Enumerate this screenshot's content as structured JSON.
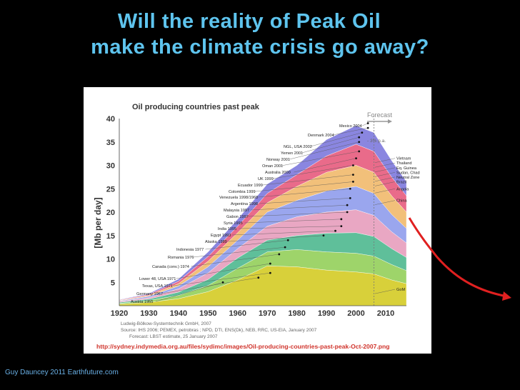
{
  "slide": {
    "title_line1": "Will the reality of Peak Oil",
    "title_line2": "make the climate crisis go away?",
    "credit": "Guy Dauncey 2011 Earthfuture.com"
  },
  "chart_data": {
    "type": "area",
    "title": "Oil producing countries past peak",
    "ylabel": "[Mb per day]",
    "xlabel": "",
    "xlim": [
      1920,
      2017
    ],
    "ylim": [
      0,
      40
    ],
    "x_ticks": [
      1920,
      1930,
      1940,
      1950,
      1960,
      1970,
      1980,
      1990,
      2000,
      2010
    ],
    "y_ticks": [
      5,
      10,
      15,
      20,
      25,
      30,
      35,
      40
    ],
    "grid": false,
    "forecast_label": "Forecast",
    "forecast_start": 2006,
    "forecast_rate_label": "- 3% p.a.",
    "series": [
      {
        "x": [
          1920,
          1930,
          1940,
          1950,
          1960,
          1970,
          1980,
          1990,
          2000,
          2006,
          2012,
          2017
        ],
        "values": [
          0.3,
          0.7,
          1.5,
          3.0,
          5.5,
          8.5,
          8.3,
          7.6,
          7.2,
          6.8,
          5.5,
          4.7
        ]
      },
      {
        "x": [
          1920,
          1930,
          1940,
          1950,
          1960,
          1970,
          1980,
          1990,
          2000,
          2006,
          2012,
          2017
        ],
        "values": [
          0.5,
          1.1,
          2.2,
          4.3,
          8.0,
          11.5,
          12.0,
          11.5,
          11.2,
          10.6,
          8.8,
          7.5
        ]
      },
      {
        "x": [
          1920,
          1930,
          1940,
          1950,
          1960,
          1970,
          1980,
          1990,
          2000,
          2006,
          2012,
          2017
        ],
        "values": [
          0.7,
          1.4,
          2.9,
          5.6,
          10.2,
          14.0,
          15.0,
          15.5,
          15.6,
          14.8,
          12.2,
          10.3
        ]
      },
      {
        "x": [
          1920,
          1930,
          1940,
          1950,
          1960,
          1970,
          1980,
          1990,
          2000,
          2006,
          2012,
          2017
        ],
        "values": [
          0.9,
          1.7,
          3.6,
          7.0,
          12.2,
          17.0,
          19.0,
          20.0,
          20.5,
          19.3,
          15.8,
          13.4
        ]
      },
      {
        "x": [
          1920,
          1930,
          1940,
          1950,
          1960,
          1970,
          1980,
          1990,
          2000,
          2006,
          2012,
          2017
        ],
        "values": [
          1.0,
          2.0,
          4.2,
          8.3,
          14.0,
          20.0,
          22.5,
          24.5,
          25.5,
          24.0,
          19.5,
          16.5
        ]
      },
      {
        "x": [
          1920,
          1930,
          1940,
          1950,
          1960,
          1970,
          1980,
          1990,
          2000,
          2006,
          2012,
          2017
        ],
        "values": [
          1.1,
          2.2,
          4.7,
          9.5,
          15.6,
          22.0,
          25.5,
          28.5,
          30.0,
          28.5,
          23.5,
          20.0
        ]
      },
      {
        "x": [
          1920,
          1930,
          1940,
          1950,
          1960,
          1970,
          1980,
          1990,
          2000,
          2006,
          2012,
          2017
        ],
        "values": [
          1.2,
          2.4,
          5.2,
          10.5,
          17.0,
          24.0,
          28.0,
          32.0,
          34.5,
          33.0,
          27.5,
          23.5
        ]
      },
      {
        "x": [
          1920,
          1930,
          1940,
          1950,
          1960,
          1970,
          1980,
          1990,
          2000,
          2006,
          2012,
          2017
        ],
        "values": [
          1.3,
          2.6,
          5.7,
          11.5,
          18.5,
          26.0,
          30.0,
          35.5,
          38.5,
          37.0,
          31.0,
          26.5
        ]
      }
    ],
    "peak_labels": [
      {
        "text": "Austria 1955",
        "peak_x": 1955,
        "peak_y": 5
      },
      {
        "text": "Germany 1967",
        "peak_x": 1967,
        "peak_y": 6
      },
      {
        "text": "Texas, USA 1971",
        "peak_x": 1971,
        "peak_y": 7
      },
      {
        "text": "Lower 48, USA 1971",
        "peak_x": 1971,
        "peak_y": 9
      },
      {
        "text": "Canada (conv.) 1974",
        "peak_x": 1974,
        "peak_y": 11
      },
      {
        "text": "Romania 1976",
        "peak_x": 1976,
        "peak_y": 12.5
      },
      {
        "text": "Indonesia 1977",
        "peak_x": 1977,
        "peak_y": 14
      },
      {
        "text": "Alaska 1989",
        "peak_x": 1989,
        "peak_y": 15
      },
      {
        "text": "Egypt 1993",
        "peak_x": 1993,
        "peak_y": 16
      },
      {
        "text": "India 1995",
        "peak_x": 1995,
        "peak_y": 17
      },
      {
        "text": "Syria 1995",
        "peak_x": 1995,
        "peak_y": 18.5
      },
      {
        "text": "Gabon 1997",
        "peak_x": 1997,
        "peak_y": 20
      },
      {
        "text": "Malaysia 1997",
        "peak_x": 1997,
        "peak_y": 21.5
      },
      {
        "text": "Argentina 1998",
        "peak_x": 1998,
        "peak_y": 23
      },
      {
        "text": "Venezuela 1998/1968",
        "peak_x": 1998,
        "peak_y": 25
      },
      {
        "text": "Colombia 1999",
        "peak_x": 1999,
        "peak_y": 26.5
      },
      {
        "text": "Ecuador 1999",
        "peak_x": 1999,
        "peak_y": 28
      },
      {
        "text": "UK 1999",
        "peak_x": 1999,
        "peak_y": 30
      },
      {
        "text": "Australia 2000",
        "peak_x": 2000,
        "peak_y": 31.5
      },
      {
        "text": "Oman 2001",
        "peak_x": 2001,
        "peak_y": 33
      },
      {
        "text": "Norway 2001",
        "peak_x": 2001,
        "peak_y": 35
      },
      {
        "text": "Yemen 2001",
        "peak_x": 2001,
        "peak_y": 36
      },
      {
        "text": "NGL, USA 2002",
        "peak_x": 2002,
        "peak_y": 37
      },
      {
        "text": "Denmark 2004",
        "peak_x": 2004,
        "peak_y": 38
      },
      {
        "text": "Mexico 2004",
        "peak_x": 2004,
        "peak_y": 39
      }
    ],
    "right_labels": [
      {
        "text": "Vietnam",
        "y": 31.5
      },
      {
        "text": "Thailand",
        "y": 30.5
      },
      {
        "text": "Eq. Guinea",
        "y": 29.5
      },
      {
        "text": "Sudan, Chad",
        "y": 28.5
      },
      {
        "text": "Neutral Zone",
        "y": 27.5
      },
      {
        "text": "Brazil",
        "y": 26.5
      },
      {
        "text": "Angola",
        "y": 25
      },
      {
        "text": "China",
        "y": 22.5
      },
      {
        "text": "GoM",
        "y": 3.5
      }
    ],
    "source_lines": [
      "Ludwig-Bölkow-Systemtechnik GmbH, 2007",
      "Source: IHS 2006; PEMEX, petrobras ;  NPD, DTI, ENS(Dk), NEB, RRC, US-EIA, January 2007",
      "Forecast: LBST estimate, 25 January 2007"
    ],
    "url": "http://sydney.indymedia.org.au/files/sydimc/images/Oil-producing-countries-past-peak-Oct-2007.png",
    "colors": [
      "#d8d03a",
      "#9ed46a",
      "#5fbf9a",
      "#e9a7c3",
      "#9aa6ee",
      "#f2c07a",
      "#e96b8a",
      "#8a86e0"
    ]
  }
}
